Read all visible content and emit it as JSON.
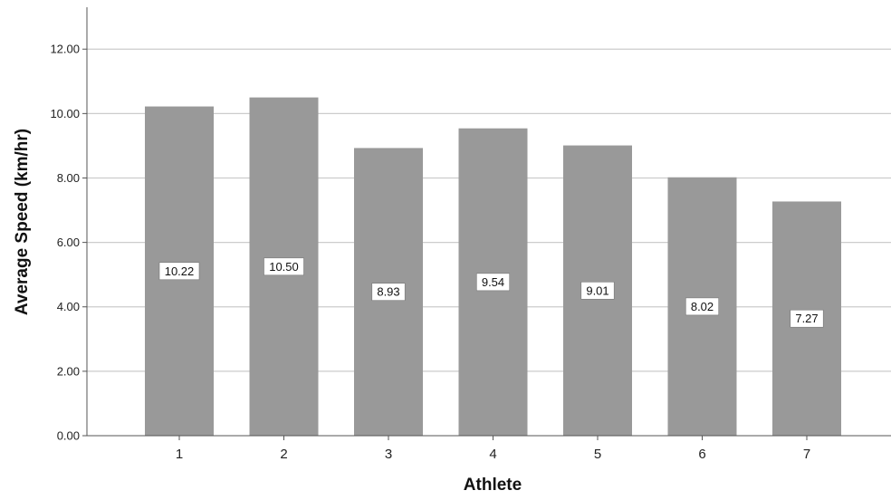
{
  "chart_data": {
    "type": "bar",
    "title": "",
    "xlabel": "Athlete",
    "ylabel": "Average Speed (km/hr)",
    "categories": [
      "1",
      "2",
      "3",
      "4",
      "5",
      "6",
      "7"
    ],
    "values": [
      10.22,
      10.5,
      8.93,
      9.54,
      9.01,
      8.02,
      7.27
    ],
    "data_labels": [
      "10.22",
      "10.50",
      "8.93",
      "9.54",
      "9.01",
      "8.02",
      "7.27"
    ],
    "ylim": [
      0,
      13.3
    ],
    "yticks": [
      0,
      2,
      4,
      6,
      8,
      10,
      12
    ],
    "ytick_labels": [
      "0.00",
      "2.00",
      "4.00",
      "6.00",
      "8.00",
      "10.00",
      "12.00"
    ],
    "grid": true,
    "legend": "none",
    "colors": {
      "bar": "#999999",
      "grid": "#cccccc",
      "axis": "#555555",
      "label_box": "#ffffff"
    }
  }
}
